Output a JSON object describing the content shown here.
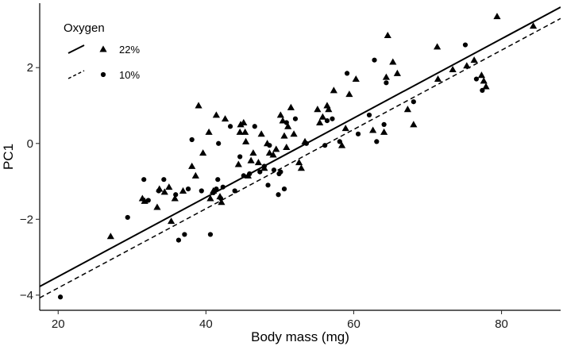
{
  "chart_data": {
    "type": "scatter",
    "title": "",
    "xlabel": "Body mass (mg)",
    "ylabel": "PC1",
    "xlim": [
      17.5,
      88
    ],
    "ylim": [
      -4.4,
      3.7
    ],
    "x_ticks": [
      20,
      40,
      60,
      80
    ],
    "y_ticks": [
      -4,
      -2,
      0,
      2
    ],
    "grid": false,
    "legend": {
      "title": "Oxygen",
      "position": "top-left",
      "entries": [
        {
          "label": "22%",
          "marker": "triangle",
          "line": "solid"
        },
        {
          "label": "10%",
          "marker": "circle",
          "line": "dashed"
        }
      ]
    },
    "series": [
      {
        "name": "22%",
        "marker": "triangle",
        "fit": {
          "intercept": -5.6,
          "slope": 0.1045,
          "style": "solid"
        },
        "points": [
          [
            27.1,
            -2.45
          ],
          [
            31.4,
            -1.45
          ],
          [
            31.7,
            -1.52
          ],
          [
            33.4,
            -1.68
          ],
          [
            33.7,
            -1.2
          ],
          [
            34.4,
            -1.28
          ],
          [
            35.0,
            -1.15
          ],
          [
            35.3,
            -2.05
          ],
          [
            35.8,
            -1.45
          ],
          [
            36.9,
            -1.25
          ],
          [
            38.1,
            -0.6
          ],
          [
            38.6,
            -0.85
          ],
          [
            39.0,
            1.0
          ],
          [
            39.6,
            -0.25
          ],
          [
            40.4,
            0.3
          ],
          [
            40.6,
            -1.45
          ],
          [
            41.0,
            -1.25
          ],
          [
            41.4,
            0.75
          ],
          [
            41.9,
            -1.4
          ],
          [
            42.1,
            -1.55
          ],
          [
            42.6,
            0.65
          ],
          [
            44.4,
            -0.55
          ],
          [
            44.6,
            0.3
          ],
          [
            44.7,
            0.5
          ],
          [
            45.1,
            0.55
          ],
          [
            45.3,
            0.3
          ],
          [
            45.4,
            0.05
          ],
          [
            45.7,
            -0.85
          ],
          [
            46.1,
            -0.45
          ],
          [
            46.4,
            -0.25
          ],
          [
            47.1,
            -0.5
          ],
          [
            47.5,
            0.25
          ],
          [
            47.9,
            -0.65
          ],
          [
            48.3,
            0.0
          ],
          [
            48.6,
            -0.25
          ],
          [
            49.1,
            -0.3
          ],
          [
            49.5,
            -0.15
          ],
          [
            50.1,
            0.75
          ],
          [
            50.4,
            0.6
          ],
          [
            50.6,
            0.2
          ],
          [
            50.9,
            -0.1
          ],
          [
            51.1,
            0.45
          ],
          [
            51.5,
            0.95
          ],
          [
            51.9,
            0.25
          ],
          [
            52.6,
            -0.5
          ],
          [
            52.9,
            -0.65
          ],
          [
            53.4,
            0.05
          ],
          [
            55.1,
            0.9
          ],
          [
            55.4,
            0.55
          ],
          [
            55.8,
            0.7
          ],
          [
            56.4,
            1.0
          ],
          [
            56.6,
            0.9
          ],
          [
            57.3,
            1.4
          ],
          [
            58.4,
            -0.05
          ],
          [
            58.9,
            0.4
          ],
          [
            59.4,
            1.3
          ],
          [
            60.3,
            1.7
          ],
          [
            62.6,
            0.35
          ],
          [
            64.1,
            0.3
          ],
          [
            64.4,
            1.75
          ],
          [
            64.6,
            2.85
          ],
          [
            65.3,
            2.15
          ],
          [
            65.9,
            1.85
          ],
          [
            67.3,
            0.9
          ],
          [
            68.1,
            0.5
          ],
          [
            71.3,
            2.55
          ],
          [
            71.4,
            1.7
          ],
          [
            73.4,
            1.95
          ],
          [
            75.3,
            2.05
          ],
          [
            76.3,
            2.2
          ],
          [
            77.3,
            1.8
          ],
          [
            77.6,
            1.65
          ],
          [
            77.9,
            1.5
          ],
          [
            79.4,
            3.35
          ],
          [
            84.3,
            3.1
          ]
        ]
      },
      {
        "name": "10%",
        "marker": "circle",
        "fit": {
          "intercept": -5.9,
          "slope": 0.1045,
          "style": "dashed"
        },
        "points": [
          [
            20.3,
            -4.05
          ],
          [
            29.4,
            -1.95
          ],
          [
            31.6,
            -0.95
          ],
          [
            32.2,
            -1.5
          ],
          [
            33.6,
            -1.25
          ],
          [
            34.3,
            -0.95
          ],
          [
            35.9,
            -1.35
          ],
          [
            36.3,
            -2.55
          ],
          [
            37.1,
            -2.4
          ],
          [
            37.6,
            -1.2
          ],
          [
            38.1,
            0.1
          ],
          [
            39.4,
            -1.25
          ],
          [
            40.6,
            -2.4
          ],
          [
            41.0,
            -1.3
          ],
          [
            41.4,
            -1.2
          ],
          [
            41.6,
            -0.95
          ],
          [
            41.7,
            0.0
          ],
          [
            42.0,
            -1.45
          ],
          [
            42.3,
            -1.15
          ],
          [
            43.3,
            0.45
          ],
          [
            43.9,
            -1.25
          ],
          [
            44.6,
            -0.35
          ],
          [
            45.1,
            -0.85
          ],
          [
            45.9,
            -0.8
          ],
          [
            46.6,
            0.45
          ],
          [
            47.3,
            -0.75
          ],
          [
            47.9,
            -0.6
          ],
          [
            48.4,
            -1.1
          ],
          [
            48.6,
            -0.05
          ],
          [
            49.2,
            -0.7
          ],
          [
            49.8,
            -1.35
          ],
          [
            49.9,
            -0.8
          ],
          [
            50.1,
            -0.75
          ],
          [
            50.6,
            -1.2
          ],
          [
            50.9,
            0.55
          ],
          [
            52.1,
            0.65
          ],
          [
            53.6,
            0.0
          ],
          [
            56.1,
            -0.05
          ],
          [
            56.4,
            0.6
          ],
          [
            57.1,
            0.65
          ],
          [
            58.1,
            0.05
          ],
          [
            59.1,
            1.85
          ],
          [
            60.6,
            0.25
          ],
          [
            62.1,
            0.75
          ],
          [
            62.8,
            2.2
          ],
          [
            63.1,
            0.05
          ],
          [
            64.1,
            0.5
          ],
          [
            64.4,
            1.6
          ],
          [
            68.1,
            1.1
          ],
          [
            75.1,
            2.6
          ],
          [
            76.6,
            1.7
          ],
          [
            77.4,
            1.4
          ]
        ]
      }
    ]
  }
}
